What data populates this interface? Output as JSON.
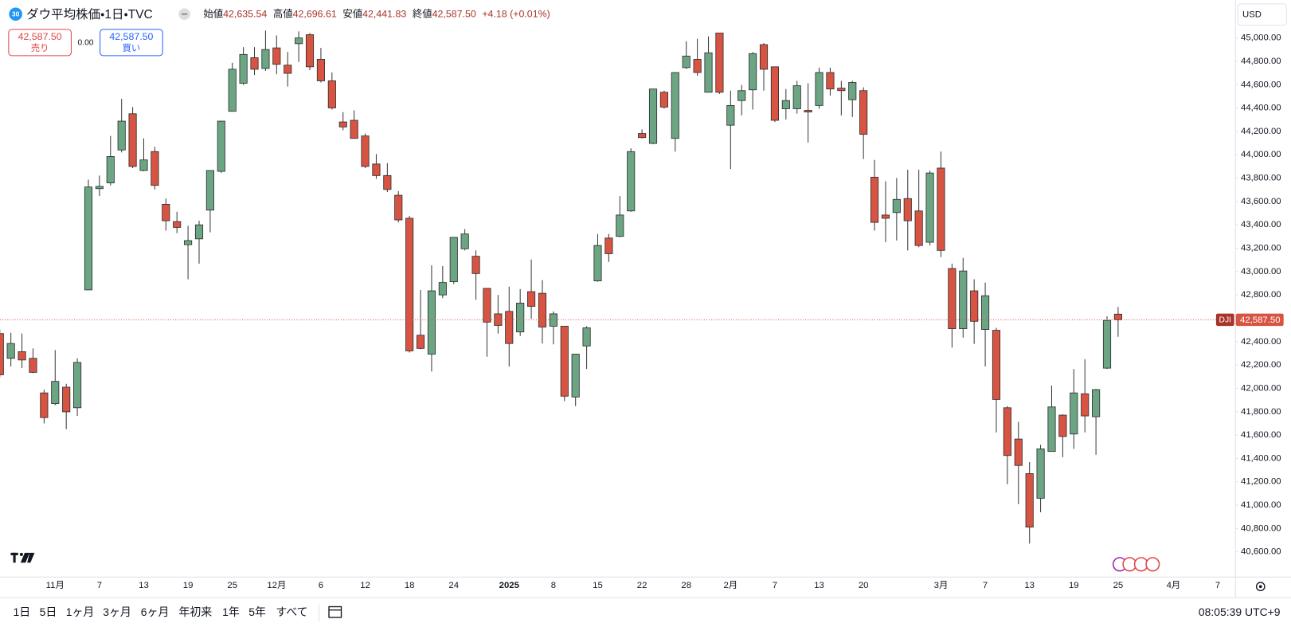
{
  "header": {
    "badge": "30",
    "title": "ダウ平均株価・1日・TVC",
    "ohlc": [
      {
        "label": "始値",
        "value": "42,635.54"
      },
      {
        "label": "高値",
        "value": "42,696.61"
      },
      {
        "label": "安値",
        "value": "42,441.83"
      },
      {
        "label": "終値",
        "value": "42,587.50"
      }
    ],
    "change": "+4.18 (+0.01%)"
  },
  "quote": {
    "sell_price": "42,587.50",
    "sell_label": "売り",
    "spread": "0.00",
    "buy_price": "42,587.50",
    "buy_label": "買い"
  },
  "currency": "USD",
  "toolbar": {
    "ranges": [
      "1日",
      "5日",
      "1ヶ月",
      "3ヶ月",
      "6ヶ月",
      "年初来",
      "1年",
      "5年",
      "すべて"
    ],
    "time": "08:05:39 UTC+9"
  },
  "chart_data": {
    "type": "candlestick",
    "up_color": "#6ba583",
    "down_color": "#d75442",
    "grid": false,
    "symbol": "DJI",
    "last_price": {
      "value": 42587.5,
      "label": "42,587.50"
    },
    "last_price_color": "#d75442",
    "ylim": [
      40388,
      45324
    ],
    "yticks": [
      {
        "value": 40600,
        "label": "40,600.00"
      },
      {
        "value": 40800,
        "label": "40,800.00"
      },
      {
        "value": 41000,
        "label": "41,000.00"
      },
      {
        "value": 41200,
        "label": "41,200.00"
      },
      {
        "value": 41400,
        "label": "41,400.00"
      },
      {
        "value": 41600,
        "label": "41,600.00"
      },
      {
        "value": 41800,
        "label": "41,800.00"
      },
      {
        "value": 42000,
        "label": "42,000.00"
      },
      {
        "value": 42200,
        "label": "42,200.00"
      },
      {
        "value": 42400,
        "label": "42,400.00"
      },
      {
        "value": 42600,
        "label": "42,600.00"
      },
      {
        "value": 42800,
        "label": "42,800.00"
      },
      {
        "value": 43000,
        "label": "43,000.00"
      },
      {
        "value": 43200,
        "label": "43,200.00"
      },
      {
        "value": 43400,
        "label": "43,400.00"
      },
      {
        "value": 43600,
        "label": "43,600.00"
      },
      {
        "value": 43800,
        "label": "43,800.00"
      },
      {
        "value": 44000,
        "label": "44,000.00"
      },
      {
        "value": 44200,
        "label": "44,200.00"
      },
      {
        "value": 44400,
        "label": "44,400.00"
      },
      {
        "value": 44600,
        "label": "44,600.00"
      },
      {
        "value": 44800,
        "label": "44,800.00"
      },
      {
        "value": 45000,
        "label": "45,000.00"
      }
    ],
    "categories": [
      null,
      null,
      null,
      null,
      null,
      "11月",
      null,
      null,
      null,
      "7",
      null,
      null,
      null,
      "13",
      null,
      null,
      null,
      "19",
      null,
      null,
      null,
      "25",
      null,
      null,
      null,
      "12月",
      null,
      null,
      null,
      "6",
      null,
      null,
      null,
      "12",
      null,
      null,
      null,
      "18",
      null,
      null,
      null,
      "24",
      null,
      null,
      null,
      null,
      "2025",
      null,
      null,
      null,
      "8",
      null,
      null,
      null,
      "15",
      null,
      null,
      null,
      "22",
      null,
      null,
      null,
      "28",
      null,
      null,
      null,
      "2月",
      null,
      null,
      null,
      "7",
      null,
      null,
      null,
      "13",
      null,
      null,
      null,
      "20",
      null,
      null,
      null,
      null,
      null,
      null,
      "3月",
      null,
      null,
      null,
      "7",
      null,
      null,
      null,
      "13",
      null,
      null,
      null,
      "19",
      null,
      null,
      null,
      "25",
      null,
      null,
      null,
      null,
      "4月",
      null,
      null,
      null,
      "7"
    ],
    "open": [
      42469,
      42257,
      42314,
      42257,
      41961,
      41870,
      42010,
      41834,
      42843,
      43710,
      43759,
      44041,
      44351,
      43865,
      44027,
      43576,
      43428,
      43230,
      43280,
      43526,
      43858,
      44372,
      44612,
      44831,
      44739,
      44915,
      44767,
      44951,
      45028,
      44817,
      44633,
      44281,
      44295,
      44161,
      43921,
      43822,
      43653,
      43456,
      42455,
      42293,
      42800,
      42913,
      43195,
      43131,
      42856,
      42638,
      42659,
      42483,
      42828,
      42814,
      42532,
      42532,
      41926,
      42363,
      42920,
      43287,
      43301,
      43519,
      44182,
      44097,
      44535,
      44140,
      44746,
      44817,
      44535,
      45042,
      44253,
      44464,
      44556,
      44943,
      44753,
      44394,
      44394,
      44380,
      44422,
      44704,
      44570,
      44471,
      44549,
      43808,
      43484,
      43505,
      43625,
      43519,
      43251,
      43886,
      43026,
      42511,
      42835,
      42504,
      42497,
      41834,
      41566,
      41270,
      41059,
      41460,
      41771,
      41609,
      41954,
      41757,
      42173,
      42635.54,
      null,
      null,
      null,
      null,
      null,
      null,
      null,
      null,
      null
    ],
    "high": [
      42504,
      42476,
      42469,
      42342,
      41989,
      42328,
      42039,
      42257,
      43787,
      43822,
      44161,
      44478,
      44408,
      44140,
      44069,
      43625,
      43512,
      43392,
      43435,
      43865,
      44288,
      44788,
      44922,
      44922,
      45063,
      45021,
      44880,
      45056,
      45042,
      44915,
      44704,
      44365,
      44380,
      44182,
      44006,
      43928,
      43688,
      43477,
      42842,
      43054,
      43047,
      43293,
      43364,
      43181,
      42856,
      42800,
      42871,
      42850,
      43103,
      42927,
      42659,
      42532,
      42293,
      42532,
      43322,
      43322,
      43646,
      44055,
      44217,
      44563,
      44549,
      44704,
      44972,
      44993,
      45014,
      45042,
      44549,
      44598,
      44880,
      44957,
      44753,
      44563,
      44633,
      44612,
      44746,
      44746,
      44633,
      44633,
      44577,
      43956,
      43773,
      43801,
      43872,
      43872,
      43865,
      44027,
      43068,
      43117,
      42934,
      42905,
      42518,
      41848,
      41714,
      41369,
      41517,
      42024,
      41778,
      42166,
      42250,
      41996,
      42617,
      42696.61,
      null,
      null,
      null,
      null,
      null,
      null,
      null,
      null,
      null
    ],
    "low": [
      42095,
      42187,
      42173,
      42130,
      41700,
      41855,
      41651,
      41764,
      42843,
      43646,
      43737,
      44020,
      43886,
      43858,
      43703,
      43350,
      43329,
      42934,
      43068,
      43336,
      43844,
      44372,
      44598,
      44683,
      44718,
      44690,
      44584,
      44795,
      44725,
      44619,
      44387,
      44210,
      44140,
      43886,
      43794,
      43681,
      43421,
      42307,
      42335,
      42145,
      42772,
      42892,
      43181,
      42758,
      42271,
      42469,
      42187,
      42448,
      42596,
      42384,
      42377,
      41891,
      41848,
      42166,
      42913,
      43082,
      43294,
      43512,
      44140,
      44090,
      44394,
      44027,
      44733,
      44676,
      44535,
      44521,
      43879,
      44337,
      44387,
      44549,
      44281,
      44302,
      44352,
      44105,
      44394,
      44506,
      44337,
      44323,
      43964,
      43350,
      43251,
      43266,
      43181,
      43209,
      43223,
      43124,
      42349,
      42434,
      42381,
      42187,
      41623,
      41179,
      41009,
      40671,
      40939,
      41467,
      41411,
      41482,
      41623,
      41432,
      42166,
      42441.83,
      null,
      null,
      null,
      null,
      null,
      null,
      null,
      null,
      null
    ],
    "close": [
      42116,
      42384,
      42243,
      42137,
      41750,
      42060,
      41799,
      42222,
      43724,
      43729,
      43985,
      44288,
      43900,
      43956,
      43738,
      43435,
      43378,
      43265,
      43400,
      43865,
      44288,
      44732,
      44859,
      44732,
      44901,
      44774,
      44697,
      45000,
      44753,
      44633,
      44401,
      44238,
      44140,
      43900,
      43822,
      43703,
      43442,
      42321,
      42342,
      42835,
      42906,
      43293,
      43322,
      42983,
      42567,
      42539,
      42384,
      42730,
      42702,
      42525,
      42638,
      41933,
      42293,
      42518,
      43223,
      43153,
      43484,
      44027,
      44147,
      44563,
      44408,
      44704,
      44845,
      44704,
      44873,
      44535,
      44422,
      44549,
      44866,
      44732,
      44295,
      44464,
      44591,
      44366,
      44704,
      44563,
      44549,
      44619,
      44175,
      43421,
      43456,
      43618,
      43435,
      43223,
      43844,
      43181,
      42511,
      43005,
      42574,
      42793,
      41905,
      41425,
      41340,
      40812,
      41482,
      41841,
      41588,
      41961,
      41764,
      41989,
      42582,
      42587.5,
      null,
      null,
      null,
      null,
      null,
      null,
      null,
      null,
      null
    ]
  }
}
